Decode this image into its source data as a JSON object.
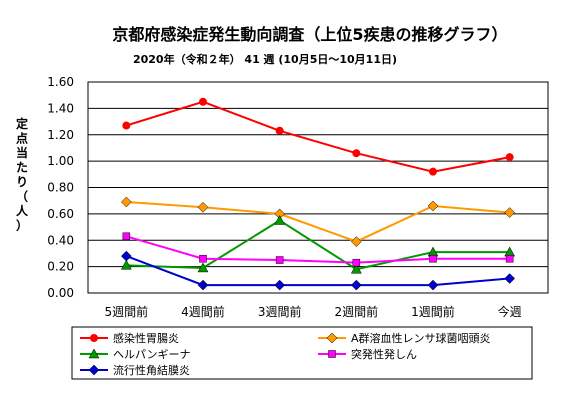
{
  "chart_data": {
    "type": "line",
    "title": "京都府感染症発生動向調査（上位5疾患の推移グラフ）",
    "subtitle": "2020年（令和２年） 41 週 (10月5日～10月11日)",
    "xlabel": "",
    "ylabel": "定点当たり（人）",
    "ylim": [
      0,
      1.6
    ],
    "yticks": [
      "0.00",
      "0.20",
      "0.40",
      "0.60",
      "0.80",
      "1.00",
      "1.20",
      "1.40",
      "1.60"
    ],
    "grid": true,
    "legend_position": "bottom",
    "categories": [
      "5週間前",
      "4週間前",
      "3週間前",
      "2週間前",
      "1週間前",
      "今週"
    ],
    "series": [
      {
        "name": "感染性胃腸炎",
        "color": "#ff0000",
        "marker": "circle",
        "values": [
          1.27,
          1.45,
          1.23,
          1.06,
          0.92,
          1.03
        ]
      },
      {
        "name": "A群溶血性レンサ球菌咽頭炎",
        "color": "#ff9900",
        "marker": "diamond",
        "values": [
          0.69,
          0.65,
          0.6,
          0.39,
          0.66,
          0.61
        ]
      },
      {
        "name": "ヘルパンギーナ",
        "color": "#009900",
        "marker": "triangle",
        "values": [
          0.21,
          0.19,
          0.55,
          0.18,
          0.31,
          0.31
        ]
      },
      {
        "name": "突発性発しん",
        "color": "#ff00ff",
        "marker": "square",
        "values": [
          0.43,
          0.26,
          0.25,
          0.23,
          0.26,
          0.26
        ]
      },
      {
        "name": "流行性角結膜炎",
        "color": "#0000cc",
        "marker": "diamond",
        "values": [
          0.28,
          0.06,
          0.06,
          0.06,
          0.06,
          0.11
        ]
      }
    ]
  }
}
